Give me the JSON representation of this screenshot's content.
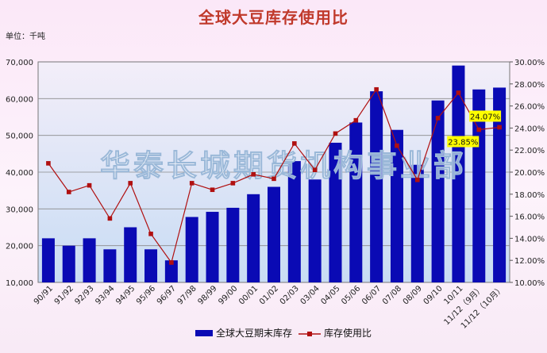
{
  "chart_data": {
    "type": "bar+line",
    "title": "全球大豆库存使用比",
    "unit_label": "单位：千吨",
    "watermark": "华泰长城期货机构事业部",
    "categories": [
      "90/91",
      "91/92",
      "92/93",
      "93/94",
      "94/95",
      "95/96",
      "96/97",
      "97/98",
      "98/99",
      "99/00",
      "00/01",
      "01/02",
      "02/03",
      "03/04",
      "04/05",
      "05/06",
      "06/07",
      "07/08",
      "08/09",
      "09/10",
      "10/11",
      "11/12（9月）",
      "11/12（10月）"
    ],
    "series": [
      {
        "name": "全球大豆期末库存",
        "type": "bar",
        "axis": "left",
        "color": "#0a0ab4",
        "values": [
          22000,
          20000,
          22000,
          19000,
          25000,
          19000,
          16000,
          27800,
          29200,
          30300,
          34000,
          36000,
          43000,
          38000,
          48000,
          53500,
          62000,
          51500,
          42000,
          59500,
          69000,
          62500,
          63000
        ]
      },
      {
        "name": "库存使用比",
        "type": "line",
        "axis": "right",
        "color": "#b01010",
        "values": [
          20.8,
          18.2,
          18.8,
          15.8,
          19.0,
          14.4,
          11.8,
          19.0,
          18.4,
          19.0,
          19.8,
          19.4,
          22.6,
          20.2,
          23.5,
          24.7,
          27.5,
          22.4,
          19.3,
          24.9,
          27.2,
          23.85,
          24.07
        ]
      }
    ],
    "y_left": {
      "min": 10000,
      "max": 70000,
      "step": 10000,
      "tick_labels": [
        "10,000",
        "20,000",
        "30,000",
        "40,000",
        "50,000",
        "60,000",
        "70,000"
      ]
    },
    "y_right": {
      "min": 10,
      "max": 30,
      "step": 2,
      "tick_labels": [
        "10.00%",
        "12.00%",
        "14.00%",
        "16.00%",
        "18.00%",
        "20.00%",
        "22.00%",
        "24.00%",
        "26.00%",
        "28.00%",
        "30.00%"
      ]
    },
    "annotations": [
      {
        "text": "24.07%",
        "category_index": 22
      },
      {
        "text": "23.85%",
        "category_index": 21
      }
    ],
    "legend": {
      "position": "bottom",
      "items": [
        {
          "label": "全球大豆期末库存",
          "marker": "bar"
        },
        {
          "label": "库存使用比",
          "marker": "line"
        }
      ]
    },
    "grid": true
  }
}
